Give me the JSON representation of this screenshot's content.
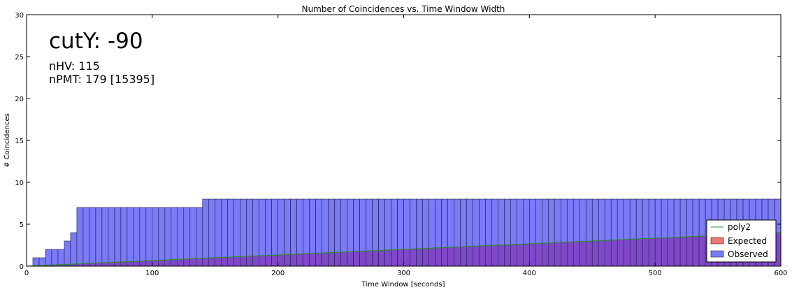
{
  "chart_data": {
    "type": "bar",
    "title": "Number of Coincidences vs. Time Window Width",
    "xlabel": "Time Window [seconds]",
    "ylabel": "# Coincidences",
    "xlim": [
      0,
      600
    ],
    "ylim": [
      0,
      30
    ],
    "xticks": [
      "0",
      "100",
      "200",
      "300",
      "400",
      "500",
      "600"
    ],
    "yticks": [
      "0",
      "5",
      "10",
      "15",
      "20",
      "25",
      "30"
    ],
    "grid": false,
    "legend_position": "bottom-right",
    "annotations": {
      "headline": "cutY: -90",
      "line1": "nHV: 115",
      "line2": "nPMT: 179 [15395]"
    },
    "bin_width": 5,
    "x": [
      5,
      10,
      15,
      20,
      25,
      30,
      35,
      40,
      45,
      50,
      55,
      60,
      65,
      70,
      75,
      80,
      85,
      90,
      95,
      100,
      105,
      110,
      115,
      120,
      125,
      130,
      135,
      140,
      145,
      150,
      155,
      160,
      165,
      170,
      175,
      180,
      185,
      190,
      195,
      200,
      205,
      210,
      215,
      220,
      225,
      230,
      235,
      240,
      245,
      250,
      255,
      260,
      265,
      270,
      275,
      280,
      285,
      290,
      295,
      300,
      305,
      310,
      315,
      320,
      325,
      330,
      335,
      340,
      345,
      350,
      355,
      360,
      365,
      370,
      375,
      380,
      385,
      390,
      395,
      400,
      405,
      410,
      415,
      420,
      425,
      430,
      435,
      440,
      445,
      450,
      455,
      460,
      465,
      470,
      475,
      480,
      485,
      490,
      495,
      500,
      505,
      510,
      515,
      520,
      525,
      530,
      535,
      540,
      545,
      550,
      555,
      560,
      565,
      570,
      575,
      580,
      585,
      590,
      595
    ],
    "series": [
      {
        "name": "Observed",
        "color": "#7b7bf7",
        "values": [
          1,
          1,
          2,
          2,
          2,
          3,
          4,
          7,
          7,
          7,
          7,
          7,
          7,
          7,
          7,
          7,
          7,
          7,
          7,
          7,
          7,
          7,
          7,
          7,
          7,
          7,
          7,
          8,
          8,
          8,
          8,
          8,
          8,
          8,
          8,
          8,
          8,
          8,
          8,
          8,
          8,
          8,
          8,
          8,
          8,
          8,
          8,
          8,
          8,
          8,
          8,
          8,
          8,
          8,
          8,
          8,
          8,
          8,
          8,
          8,
          8,
          8,
          8,
          8,
          8,
          8,
          8,
          8,
          8,
          8,
          8,
          8,
          8,
          8,
          8,
          8,
          8,
          8,
          8,
          8,
          8,
          8,
          8,
          8,
          8,
          8,
          8,
          8,
          8,
          8,
          8,
          8,
          8,
          8,
          8,
          8,
          8,
          8,
          8,
          8,
          8,
          8,
          8,
          8,
          8,
          8,
          8,
          8,
          8,
          8,
          8,
          8,
          8,
          8,
          8,
          8,
          8,
          8,
          8
        ]
      },
      {
        "name": "Expected",
        "color": "#f77474",
        "values": "linear: 0.00667 per second of window (≈4.0 at 600)"
      },
      {
        "name": "poly2",
        "color": "#2e8b2e",
        "type": "line",
        "x": [
          0,
          600
        ],
        "values": [
          0,
          4.0
        ]
      }
    ],
    "expected_slope": 0.00667
  }
}
